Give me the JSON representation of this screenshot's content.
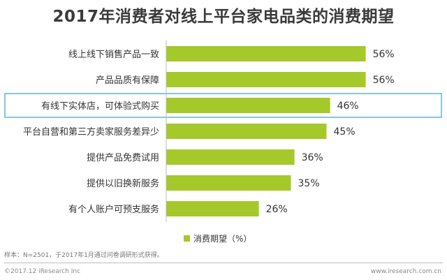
{
  "chart_data": {
    "type": "bar",
    "orientation": "horizontal",
    "title": "2017年消费者对线上平台家电品类的消费期望",
    "categories": [
      "线上线下销售产品一致",
      "产品品质有保障",
      "有线下实体店，可体验式购买",
      "平台自营和第三方卖家服务差异少",
      "提供产品免费试用",
      "提供以旧换新服务",
      "有个人账户可预支服务"
    ],
    "series": [
      {
        "name": "消费期望（%）",
        "values": [
          56,
          56,
          46,
          45,
          36,
          35,
          26
        ]
      }
    ],
    "value_labels": [
      "56%",
      "56%",
      "46%",
      "45%",
      "36%",
      "35%",
      "26%"
    ],
    "xlim": [
      0,
      60
    ],
    "highlighted_category": "有线下实体店，可体验式购买",
    "legend_position": "bottom-center",
    "grid": false,
    "colors": {
      "bar": "#a5c82b",
      "highlight_border": "#5fb2d8",
      "axis": "#bbbbbb"
    }
  },
  "note": "样本：N=2501，于2017年1月通过问卷调研形式获得。",
  "copyright": "©2017.12 iResearch Inc",
  "website": "www.iresearch.com.cn"
}
